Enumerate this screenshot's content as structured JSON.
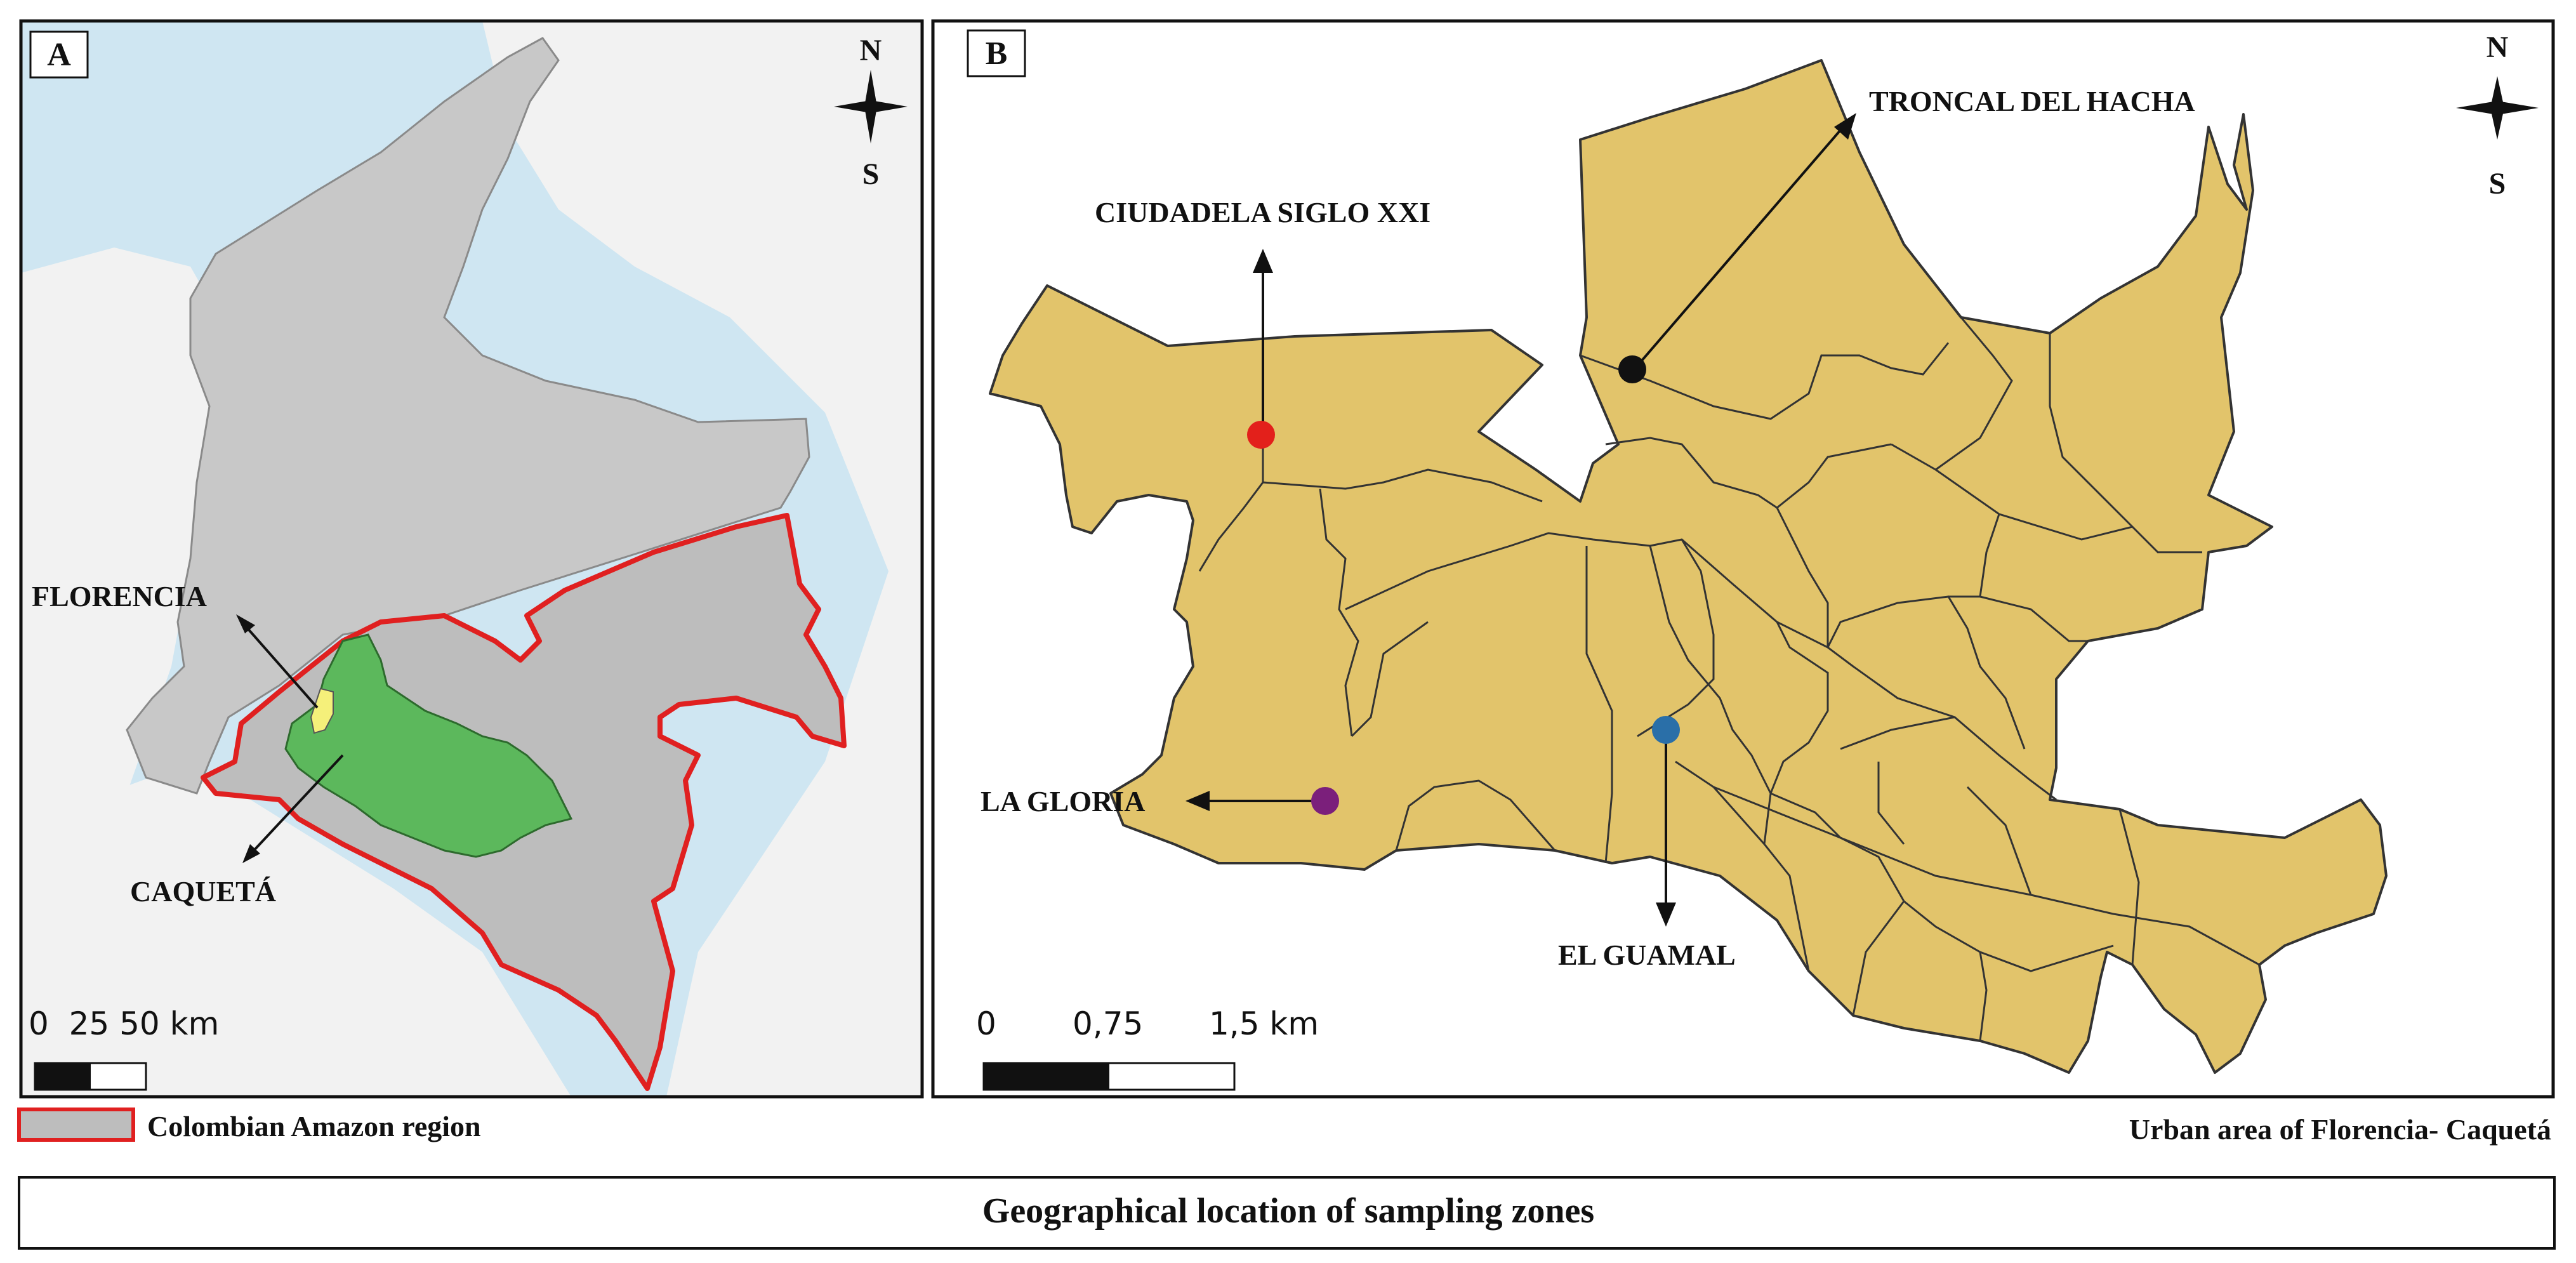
{
  "panel_a": {
    "label": "A",
    "compass_north": "N",
    "compass_south": "S",
    "place_florencia": "FLORENCIA",
    "place_caqueta": "CAQUETÁ",
    "scale_text": "0  25 50 km",
    "legend_label": "Colombian Amazon region",
    "colors": {
      "sea": "#cfe6f2",
      "land": "#f2f2f2",
      "colombia": "#c8c8c8",
      "amazon_outline": "#e02020",
      "caqueta": "#5cb85c",
      "florencia": "#f5f07a"
    }
  },
  "panel_b": {
    "label": "B",
    "compass_north": "N",
    "compass_south": "S",
    "scale_ticks": [
      "0",
      "0,75",
      "1,5 km"
    ],
    "caption": "Urban area of Florencia- Caquetá",
    "colors": {
      "urban": "#e2c46b",
      "boundary": "#333333"
    },
    "sites": [
      {
        "name": "TRONCAL DEL HACHA",
        "color": "#111111"
      },
      {
        "name": "CIUDADELA SIGLO XXI",
        "color": "#e3201b"
      },
      {
        "name": "LA GLORIA",
        "color": "#7b1f7b"
      },
      {
        "name": "EL GUAMAL",
        "color": "#2a6fa8"
      }
    ]
  },
  "figure_title": "Geographical location of sampling zones"
}
